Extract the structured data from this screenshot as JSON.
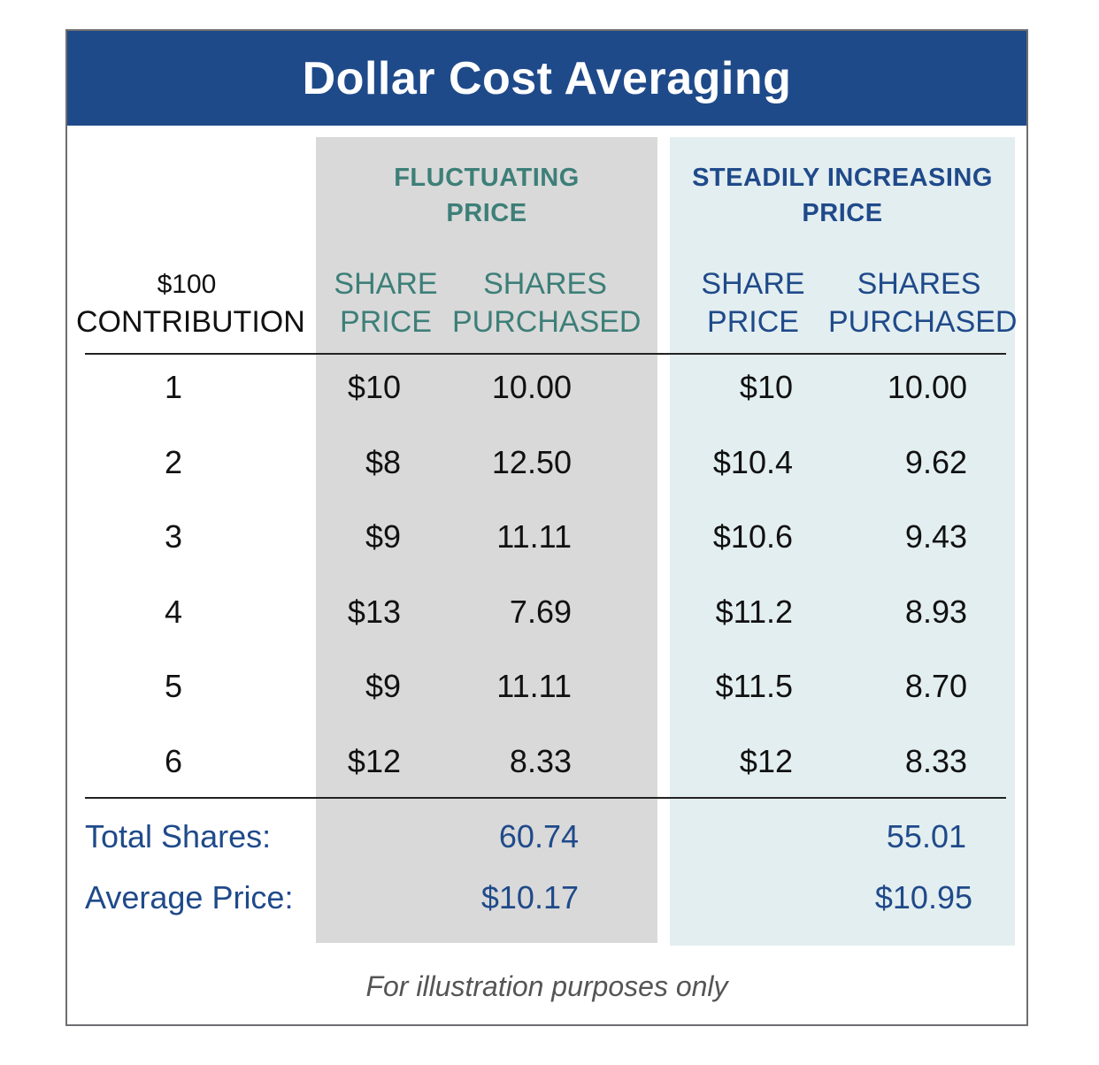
{
  "title": "Dollar Cost Averaging",
  "groups": {
    "fluctuating": "FLUCTUATING PRICE",
    "fluctuating_line1": "FLUCTUATING",
    "fluctuating_line2": "PRICE",
    "steady_line1": "STEADILY INCREASING",
    "steady_line2": "PRICE"
  },
  "headers": {
    "contribution_line1": "$100",
    "contribution_line2": "CONTRIBUTION",
    "share_line1": "SHARE",
    "share_line2": "PRICE",
    "shares_line1": "SHARES",
    "shares_line2": "PURCHASED"
  },
  "colors": {
    "title_bar": "#1f4a8a",
    "fluct_band": "#d9d9d9",
    "steady_band": "#e3eef0",
    "teal_text": "#3d7f78",
    "navy_text": "#1f4a8a"
  },
  "chart_data": {
    "type": "table",
    "title": "Dollar Cost Averaging",
    "columns": [
      "$100 CONTRIBUTION",
      "FLUCTUATING PRICE SHARE PRICE",
      "FLUCTUATING PRICE SHARES PURCHASED",
      "STEADILY INCREASING PRICE SHARE PRICE",
      "STEADILY INCREASING PRICE SHARES PURCHASED"
    ],
    "rows": [
      {
        "n": "1",
        "fp": "$10",
        "fs": "10.00",
        "sp": "$10",
        "ss": "10.00"
      },
      {
        "n": "2",
        "fp": "$8",
        "fs": "12.50",
        "sp": "$10.4",
        "ss": "9.62"
      },
      {
        "n": "3",
        "fp": "$9",
        "fs": "11.11",
        "sp": "$10.6",
        "ss": "9.43"
      },
      {
        "n": "4",
        "fp": "$13",
        "fs": "7.69",
        "sp": "$11.2",
        "ss": "8.93"
      },
      {
        "n": "5",
        "fp": "$9",
        "fs": "11.11",
        "sp": "$11.5",
        "ss": "8.70"
      },
      {
        "n": "6",
        "fp": "$12",
        "fs": "8.33",
        "sp": "$12",
        "ss": "8.33"
      }
    ],
    "totals": {
      "total_label": "Total Shares:",
      "avg_label": "Average Price:",
      "fluct_total": "60.74",
      "fluct_avg": "$10.17",
      "steady_total": "55.01",
      "steady_avg": "$10.95"
    }
  },
  "note": "For illustration purposes only"
}
